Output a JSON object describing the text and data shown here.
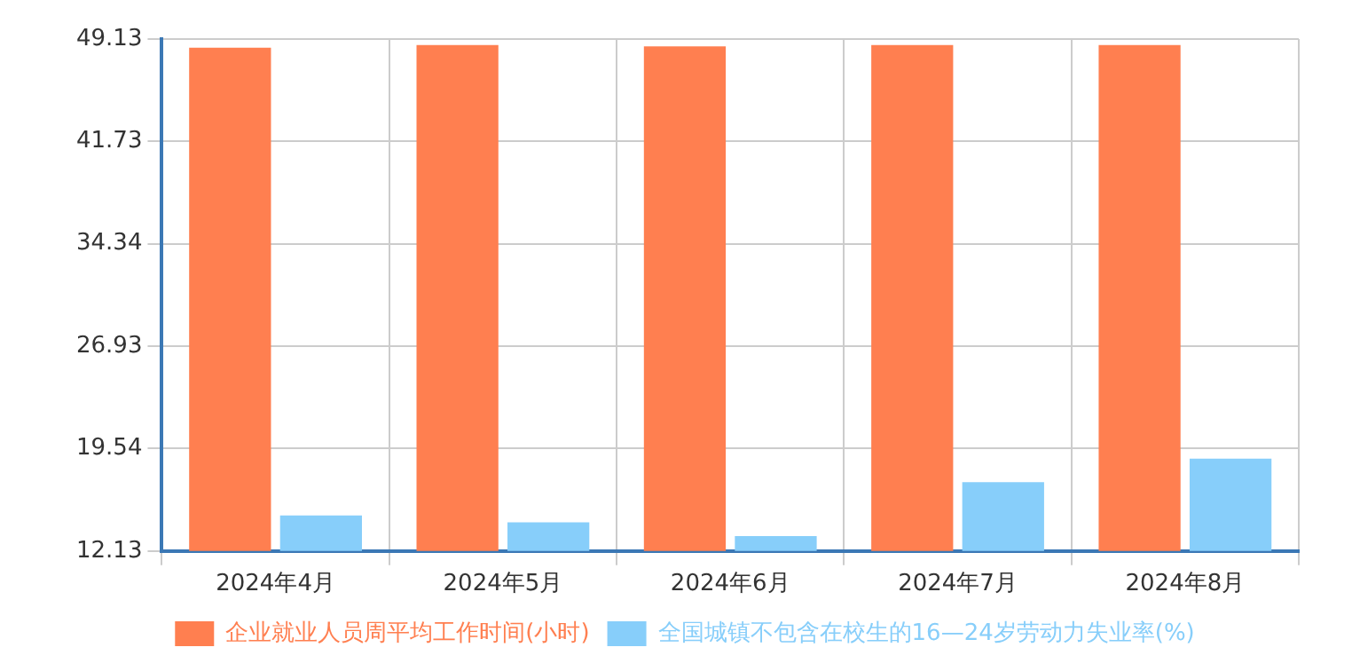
{
  "chart_data": {
    "type": "bar",
    "categories": [
      "2024年4月",
      "2024年5月",
      "2024年6月",
      "2024年7月",
      "2024年8月"
    ],
    "series": [
      {
        "name": "企业就业人员周平均工作时间(小时)",
        "color": "#ff7f50",
        "values": [
          48.5,
          48.7,
          48.6,
          48.7,
          48.7
        ]
      },
      {
        "name": "全国城镇不包含在校生的16—24岁劳动力失业率(%)",
        "color": "#87cefa",
        "values": [
          14.7,
          14.2,
          13.2,
          17.1,
          18.8
        ]
      }
    ],
    "ylim": [
      12.13,
      49.13
    ],
    "yticks": [
      12.13,
      19.54,
      26.93,
      34.34,
      41.73,
      49.13
    ],
    "grid": true,
    "legend": "bottom"
  }
}
